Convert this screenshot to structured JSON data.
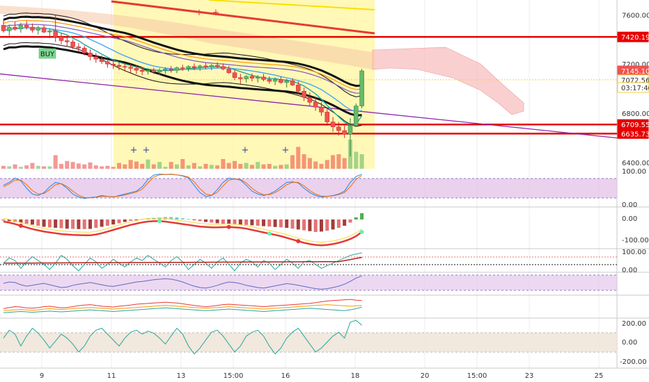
{
  "chart_data": {
    "type": "line",
    "title": "",
    "price_axis": {
      "ticks": [
        "7600.00",
        "7200.00",
        "6800.00",
        "6400.00"
      ],
      "tick_values": [
        7600,
        7200,
        6800,
        6400
      ],
      "ylim": [
        6350,
        7720
      ]
    },
    "time_axis": {
      "labels": [
        "9",
        "11",
        "13",
        "15:00",
        "16",
        "18",
        "20",
        "15:00",
        "23",
        "25"
      ]
    },
    "price_tags": [
      {
        "label": "7420.19",
        "value": 7420.19,
        "color": "#e60000",
        "text_color": "#ffffff",
        "kind": "horizontal-line"
      },
      {
        "label": "7145.10",
        "value": 7145.1,
        "color": "#ef5350",
        "text_color": "#ffffff",
        "kind": "last-price"
      },
      {
        "label": "7072.56",
        "value": 7072.56,
        "color": "#ffffff",
        "text_color": "#333333",
        "kind": "outlined"
      },
      {
        "label": "03:17:46",
        "value": 7010,
        "color": "#ffffff",
        "text_color": "#333333",
        "kind": "countdown"
      },
      {
        "label": "6709.55",
        "value": 6709.55,
        "color": "#e60000",
        "text_color": "#ffffff",
        "kind": "horizontal-line"
      },
      {
        "label": "6635.73",
        "value": 6635.73,
        "color": "#e60000",
        "text_color": "#ffffff",
        "kind": "horizontal-line"
      }
    ],
    "signal_label": "BUY",
    "candles": [
      [
        7515,
        7560,
        7455,
        7470
      ],
      [
        7470,
        7520,
        7430,
        7500
      ],
      [
        7500,
        7545,
        7470,
        7485
      ],
      [
        7485,
        7535,
        7455,
        7515
      ],
      [
        7515,
        7550,
        7480,
        7500
      ],
      [
        7500,
        7530,
        7455,
        7475
      ],
      [
        7475,
        7510,
        7440,
        7495
      ],
      [
        7495,
        7520,
        7450,
        7460
      ],
      [
        7460,
        7490,
        7410,
        7470
      ],
      [
        7470,
        7600,
        7380,
        7420
      ],
      [
        7420,
        7450,
        7360,
        7390
      ],
      [
        7390,
        7420,
        7340,
        7380
      ],
      [
        7380,
        7400,
        7320,
        7340
      ],
      [
        7340,
        7370,
        7300,
        7330
      ],
      [
        7330,
        7350,
        7270,
        7290
      ],
      [
        7290,
        7320,
        7230,
        7260
      ],
      [
        7260,
        7290,
        7210,
        7240
      ],
      [
        7240,
        7270,
        7200,
        7220
      ],
      [
        7220,
        7240,
        7170,
        7200
      ],
      [
        7200,
        7230,
        7160,
        7190
      ],
      [
        7190,
        7215,
        7150,
        7180
      ],
      [
        7180,
        7205,
        7140,
        7175
      ],
      [
        7175,
        7200,
        7130,
        7165
      ],
      [
        7165,
        7190,
        7120,
        7150
      ],
      [
        7150,
        7175,
        7110,
        7140
      ],
      [
        7140,
        7165,
        7115,
        7150
      ],
      [
        7150,
        7170,
        7120,
        7135
      ],
      [
        7135,
        7165,
        7110,
        7150
      ],
      [
        7150,
        7175,
        7120,
        7160
      ],
      [
        7160,
        7185,
        7130,
        7150
      ],
      [
        7150,
        7180,
        7125,
        7170
      ],
      [
        7170,
        7195,
        7145,
        7165
      ],
      [
        7165,
        7190,
        7140,
        7180
      ],
      [
        7180,
        7205,
        7150,
        7170
      ],
      [
        7170,
        7195,
        7145,
        7185
      ],
      [
        7185,
        7210,
        7160,
        7175
      ],
      [
        7175,
        7200,
        7150,
        7190
      ],
      [
        7190,
        7215,
        7165,
        7180
      ],
      [
        7180,
        7205,
        7150,
        7160
      ],
      [
        7160,
        7185,
        7120,
        7130
      ],
      [
        7130,
        7150,
        7070,
        7090
      ],
      [
        7090,
        7120,
        7040,
        7080
      ],
      [
        7080,
        7110,
        7050,
        7100
      ],
      [
        7100,
        7125,
        7060,
        7085
      ],
      [
        7085,
        7110,
        7050,
        7095
      ],
      [
        7095,
        7120,
        7060,
        7075
      ],
      [
        7075,
        7100,
        7040,
        7060
      ],
      [
        7060,
        7090,
        7030,
        7075
      ],
      [
        7075,
        7100,
        7040,
        7050
      ],
      [
        7050,
        7080,
        7010,
        7065
      ],
      [
        7065,
        7085,
        7020,
        7030
      ],
      [
        7030,
        7060,
        6960,
        6980
      ],
      [
        6980,
        7010,
        6900,
        6930
      ],
      [
        6930,
        6970,
        6860,
        6890
      ],
      [
        6890,
        6930,
        6820,
        6850
      ],
      [
        6850,
        6890,
        6780,
        6810
      ],
      [
        6810,
        6850,
        6700,
        6730
      ],
      [
        6730,
        6770,
        6650,
        6690
      ],
      [
        6690,
        6730,
        6620,
        6660
      ],
      [
        6660,
        6700,
        6600,
        6630
      ],
      [
        6630,
        6760,
        6450,
        6700
      ],
      [
        6700,
        6880,
        6690,
        6860
      ],
      [
        6860,
        7160,
        6840,
        7145
      ]
    ],
    "volume": [
      6,
      5,
      9,
      4,
      7,
      12,
      6,
      5,
      5,
      28,
      10,
      16,
      14,
      11,
      9,
      13,
      7,
      5,
      6,
      4,
      12,
      9,
      18,
      15,
      10,
      19,
      9,
      14,
      4,
      14,
      9,
      20,
      7,
      12,
      5,
      10,
      8,
      7,
      20,
      12,
      16,
      10,
      12,
      8,
      14,
      9,
      10,
      6,
      8,
      9,
      28,
      45,
      30,
      22,
      15,
      10,
      18,
      28,
      30,
      22,
      60,
      35,
      30
    ],
    "stoch_axis": [
      "100.00",
      "0.00"
    ],
    "stoch_k": [
      60,
      70,
      85,
      75,
      50,
      30,
      25,
      35,
      55,
      70,
      65,
      50,
      30,
      20,
      15,
      18,
      20,
      25,
      22,
      20,
      25,
      30,
      35,
      40,
      55,
      80,
      95,
      98,
      97,
      98,
      96,
      92,
      85,
      60,
      35,
      22,
      25,
      45,
      70,
      85,
      82,
      78,
      60,
      40,
      30,
      25,
      30,
      40,
      55,
      70,
      72,
      68,
      50,
      35,
      25,
      20,
      22,
      25,
      30,
      40,
      70,
      90,
      98
    ],
    "stoch_d": [
      55,
      65,
      78,
      78,
      62,
      42,
      30,
      32,
      45,
      62,
      66,
      56,
      40,
      26,
      18,
      17,
      19,
      22,
      22,
      21,
      23,
      27,
      32,
      37,
      47,
      68,
      88,
      96,
      97,
      97,
      96,
      93,
      88,
      72,
      48,
      30,
      26,
      36,
      58,
      78,
      82,
      80,
      68,
      50,
      36,
      28,
      28,
      35,
      47,
      62,
      70,
      70,
      58,
      42,
      30,
      23,
      22,
      24,
      28,
      35,
      55,
      80,
      94
    ],
    "macd_axis": [
      "0.00",
      "-100.00"
    ],
    "macd_hist": [
      -5,
      -8,
      -12,
      -15,
      -20,
      -25,
      -30,
      -35,
      -38,
      -40,
      -42,
      -44,
      -45,
      -46,
      -46,
      -45,
      -40,
      -35,
      -30,
      -24,
      -18,
      -12,
      -6,
      -2,
      2,
      5,
      8,
      10,
      12,
      12,
      10,
      6,
      2,
      -3,
      -8,
      -12,
      -15,
      -18,
      -20,
      -22,
      -24,
      -25,
      -26,
      -28,
      -30,
      -32,
      -34,
      -36,
      -38,
      -40,
      -44,
      -48,
      -52,
      -56,
      -60,
      -58,
      -54,
      -48,
      -40,
      -30,
      -15,
      10,
      30
    ],
    "macd_line": [
      -10,
      -15,
      -22,
      -30,
      -38,
      -46,
      -52,
      -58,
      -62,
      -66,
      -70,
      -72,
      -74,
      -75,
      -76,
      -76,
      -72,
      -66,
      -58,
      -50,
      -42,
      -34,
      -26,
      -20,
      -14,
      -10,
      -8,
      -8,
      -10,
      -14,
      -18,
      -22,
      -26,
      -30,
      -34,
      -36,
      -38,
      -38,
      -37,
      -36,
      -38,
      -40,
      -44,
      -50,
      -56,
      -62,
      -68,
      -74,
      -80,
      -88,
      -96,
      -104,
      -112,
      -118,
      -122,
      -124,
      -122,
      -118,
      -112,
      -104,
      -94,
      -80,
      -60
    ],
    "cci_axis": [
      "100.00",
      "0.00"
    ],
    "cci_values": [
      20,
      60,
      40,
      -20,
      30,
      70,
      40,
      10,
      -30,
      20,
      80,
      50,
      0,
      -40,
      10,
      60,
      30,
      -20,
      10,
      50,
      20,
      -10,
      30,
      60,
      40,
      80,
      50,
      20,
      -10,
      40,
      70,
      30,
      -30,
      10,
      50,
      20,
      -20,
      30,
      60,
      10,
      -40,
      20,
      50,
      30,
      -10,
      40,
      20,
      -30,
      10,
      50,
      20,
      -20,
      30,
      40,
      10,
      -20,
      0,
      20,
      40,
      60,
      80,
      90,
      100
    ],
    "rsi_values": [
      55,
      60,
      58,
      50,
      45,
      48,
      52,
      55,
      50,
      45,
      40,
      42,
      48,
      52,
      55,
      58,
      54,
      50,
      46,
      44,
      48,
      52,
      56,
      60,
      62,
      65,
      68,
      70,
      72,
      70,
      66,
      60,
      52,
      45,
      40,
      38,
      42,
      48,
      55,
      60,
      58,
      54,
      48,
      44,
      40,
      38,
      42,
      46,
      50,
      54,
      52,
      48,
      44,
      40,
      36,
      34,
      36,
      40,
      45,
      52,
      62,
      74,
      82
    ],
    "tsi_red": [
      40,
      45,
      50,
      48,
      44,
      42,
      45,
      50,
      52,
      48,
      44,
      46,
      50,
      55,
      58,
      60,
      56,
      52,
      50,
      48,
      52,
      55,
      58,
      62,
      64,
      66,
      68,
      70,
      72,
      70,
      68,
      64,
      60,
      56,
      52,
      50,
      52,
      56,
      60,
      62,
      60,
      58,
      56,
      54,
      52,
      50,
      52,
      54,
      56,
      58,
      60,
      62,
      64,
      66,
      70,
      74,
      78,
      80,
      82,
      84,
      86,
      82,
      80
    ],
    "tsi_orange": [
      30,
      32,
      34,
      36,
      34,
      32,
      34,
      38,
      40,
      38,
      36,
      38,
      40,
      42,
      44,
      46,
      44,
      42,
      40,
      38,
      40,
      42,
      44,
      46,
      48,
      50,
      52,
      54,
      56,
      54,
      52,
      50,
      48,
      46,
      44,
      42,
      44,
      46,
      48,
      50,
      48,
      46,
      44,
      42,
      40,
      38,
      40,
      42,
      44,
      46,
      48,
      50,
      52,
      54,
      56,
      58,
      60,
      58,
      56,
      54,
      52,
      54,
      56
    ],
    "tsi_teal": [
      20,
      22,
      24,
      26,
      24,
      22,
      24,
      26,
      28,
      26,
      24,
      26,
      28,
      30,
      32,
      34,
      32,
      30,
      28,
      26,
      28,
      30,
      32,
      34,
      36,
      38,
      40,
      42,
      44,
      42,
      40,
      38,
      36,
      34,
      32,
      30,
      32,
      34,
      36,
      38,
      36,
      34,
      32,
      30,
      28,
      26,
      28,
      30,
      32,
      34,
      36,
      38,
      40,
      42,
      40,
      38,
      36,
      34,
      32,
      30,
      34,
      40,
      48
    ],
    "osc_axis": [
      "200.00",
      "0.00",
      "-200.00"
    ],
    "osc_values": [
      40,
      120,
      80,
      -40,
      60,
      140,
      90,
      20,
      -60,
      10,
      80,
      40,
      -20,
      -100,
      -40,
      60,
      120,
      140,
      80,
      20,
      -40,
      40,
      100,
      120,
      80,
      110,
      90,
      40,
      -20,
      60,
      140,
      80,
      -40,
      -120,
      -60,
      20,
      100,
      120,
      60,
      -20,
      -100,
      -40,
      60,
      100,
      120,
      60,
      -40,
      -120,
      -60,
      40,
      100,
      140,
      60,
      -20,
      -100,
      -60,
      0,
      60,
      100,
      40,
      200,
      220,
      170
    ]
  },
  "colors": {
    "bull": "#66bb6a",
    "bear": "#ef5350",
    "highlight_zone": "#fff59d",
    "cloud": "#f8bbbb",
    "level_line": "#e60000",
    "purple_trend": "#8e24aa",
    "stoch_band": "#e1bee7",
    "osc_band": "#efe6da"
  },
  "icons": {
    "buy_marker": "rectangle-label",
    "plus_marker": "plus-sign"
  }
}
